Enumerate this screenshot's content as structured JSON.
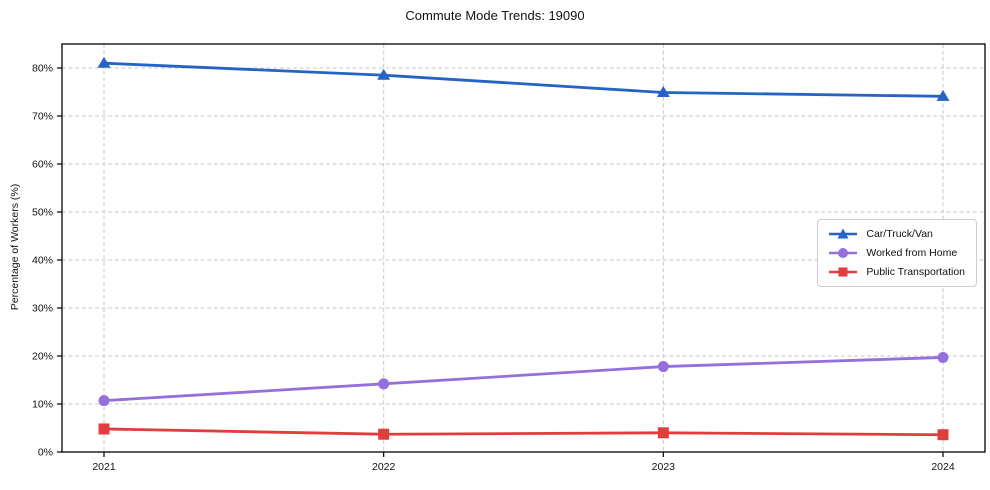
{
  "chart_data": {
    "type": "line",
    "title": "Commute Mode Trends: 19090",
    "xlabel": "",
    "ylabel": "Percentage of Workers (%)",
    "categories": [
      "2021",
      "2022",
      "2023",
      "2024"
    ],
    "ylim": [
      0,
      85
    ],
    "yticks": [
      0,
      10,
      20,
      30,
      40,
      50,
      60,
      70,
      80
    ],
    "ytick_suffix": "%",
    "grid": true,
    "grid_style": "dashed",
    "grid_color": "#c9c9c9",
    "spine_color": "#000000",
    "legend_position": "center-right",
    "series": [
      {
        "name": "Car/Truck/Van",
        "color": "#2563c4",
        "marker": "triangle",
        "values": [
          81.0,
          78.5,
          74.9,
          74.1
        ]
      },
      {
        "name": "Worked from Home",
        "color": "#9370db",
        "marker": "circle",
        "values": [
          10.7,
          14.2,
          17.8,
          19.7
        ]
      },
      {
        "name": "Public Transportation",
        "color": "#e23d3d",
        "marker": "square",
        "values": [
          4.8,
          3.7,
          4.0,
          3.6
        ]
      }
    ]
  }
}
